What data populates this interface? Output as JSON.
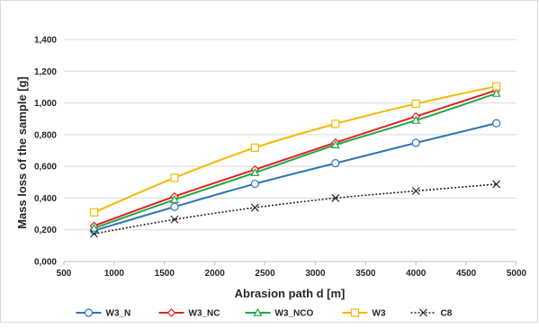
{
  "chart_data": {
    "type": "line",
    "title": "",
    "xlabel": "Abrasion path d [m]",
    "ylabel": "Mass loss of the sample [g]",
    "xlim": [
      500,
      5000
    ],
    "ylim": [
      0,
      1.4
    ],
    "x_ticks": [
      "500",
      "1000",
      "1500",
      "2000",
      "2500",
      "3000",
      "3500",
      "4000",
      "4500",
      "5000"
    ],
    "y_ticks": [
      "0,000",
      "0,200",
      "0,400",
      "0,600",
      "0,800",
      "1,000",
      "1,200",
      "1,400"
    ],
    "grid": true,
    "legend_position": "bottom",
    "x": [
      800,
      1600,
      2400,
      3200,
      4000,
      4800
    ],
    "series": [
      {
        "name": "W3_N",
        "color": "#2e75b6",
        "marker": "circle",
        "line": "solid",
        "values": [
          0.195,
          0.345,
          0.49,
          0.62,
          0.748,
          0.872
        ]
      },
      {
        "name": "W3_NC",
        "color": "#e02020",
        "marker": "diamond",
        "line": "solid",
        "values": [
          0.225,
          0.41,
          0.58,
          0.75,
          0.915,
          1.08
        ]
      },
      {
        "name": "W3_NCO",
        "color": "#22a64a",
        "marker": "triangle",
        "line": "solid",
        "values": [
          0.21,
          0.39,
          0.56,
          0.735,
          0.89,
          1.06
        ]
      },
      {
        "name": "W3",
        "color": "#f5b800",
        "marker": "square",
        "line": "solid",
        "values": [
          0.31,
          0.528,
          0.718,
          0.868,
          0.995,
          1.105
        ]
      },
      {
        "name": "C8",
        "color": "#262626",
        "marker": "x",
        "line": "dotted",
        "values": [
          0.175,
          0.265,
          0.34,
          0.4,
          0.445,
          0.488
        ]
      }
    ]
  }
}
